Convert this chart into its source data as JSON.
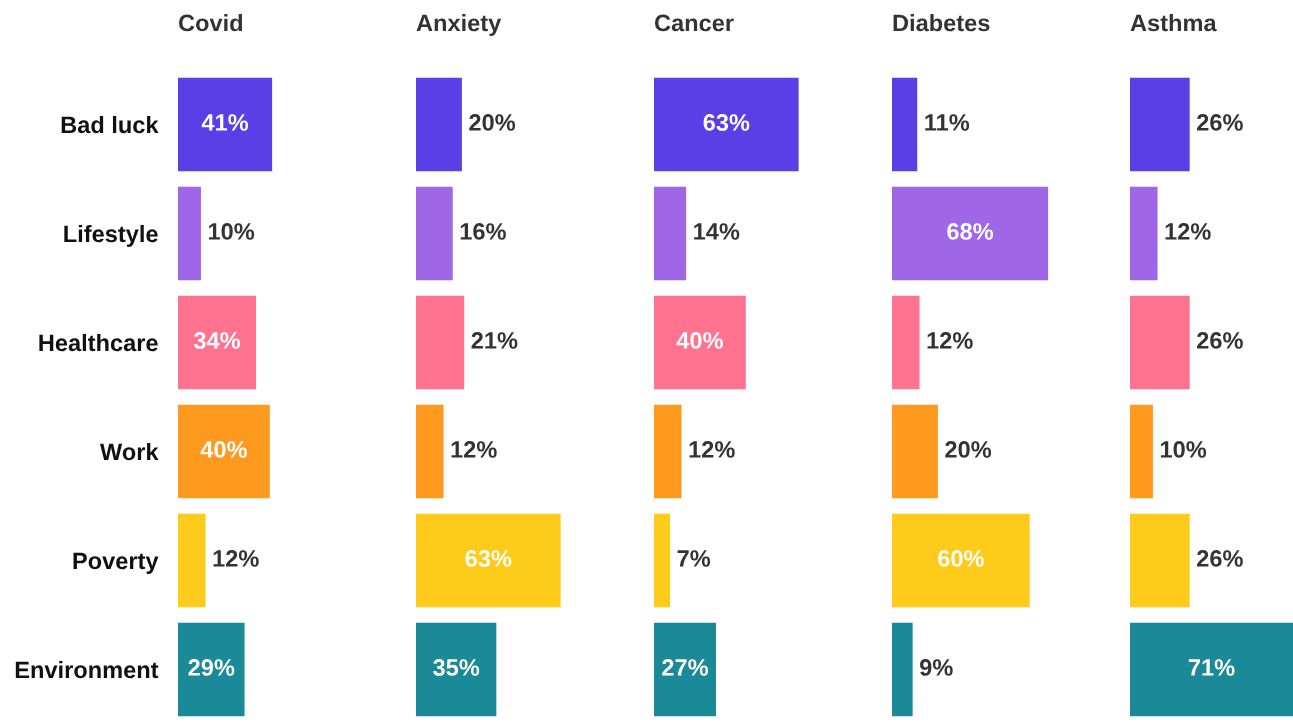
{
  "chart_data": [
    {
      "type": "bar",
      "orientation": "horizontal",
      "title": "Covid",
      "categories": [
        "Bad luck",
        "Lifestyle",
        "Healthcare",
        "Work",
        "Poverty",
        "Environment"
      ],
      "values": [
        41,
        10,
        34,
        40,
        12,
        29
      ],
      "value_labels": [
        "41%",
        "10%",
        "34%",
        "40%",
        "12%",
        "29%"
      ],
      "colors": [
        "#5a3fe6",
        "#a066e8",
        "#ff7390",
        "#ff9a1f",
        "#ffcb1a",
        "#1b8a98"
      ],
      "tick_labels": "y"
    },
    {
      "type": "bar",
      "orientation": "horizontal",
      "title": "Anxiety",
      "categories": [
        null,
        null,
        null,
        null,
        null,
        null
      ],
      "values": [
        20,
        16,
        21,
        12,
        63,
        35
      ],
      "value_labels": [
        "20%",
        "16%",
        "21%",
        "12%",
        "63%",
        "35%"
      ],
      "colors": [
        "#5a3fe6",
        "#a066e8",
        "#ff7390",
        "#ff9a1f",
        "#ffcb1a",
        "#1b8a98"
      ],
      "tick_labels": false
    },
    {
      "type": "bar",
      "orientation": "horizontal",
      "title": "Cancer",
      "categories": [
        null,
        null,
        null,
        null,
        null,
        null
      ],
      "values": [
        63,
        14,
        40,
        12,
        7,
        27
      ],
      "value_labels": [
        "63%",
        "14%",
        "40%",
        "12%",
        "7%",
        "27%"
      ],
      "colors": [
        "#5a3fe6",
        "#a066e8",
        "#ff7390",
        "#ff9a1f",
        "#ffcb1a",
        "#1b8a98"
      ],
      "tick_labels": false
    },
    {
      "type": "bar",
      "orientation": "horizontal",
      "title": "Diabetes",
      "categories": [
        null,
        null,
        null,
        null,
        null,
        null
      ],
      "values": [
        11,
        68,
        12,
        20,
        60,
        9
      ],
      "value_labels": [
        "11%",
        "68%",
        "12%",
        "20%",
        "60%",
        "9%"
      ],
      "colors": [
        "#5a3fe6",
        "#a066e8",
        "#ff7390",
        "#ff9a1f",
        "#ffcb1a",
        "#1b8a98"
      ],
      "tick_labels": false
    },
    {
      "type": "bar",
      "orientation": "horizontal",
      "title": "Asthma",
      "categories": [
        null,
        null,
        null,
        null,
        null,
        null
      ],
      "values": [
        26,
        12,
        26,
        10,
        26,
        71
      ],
      "value_labels": [
        "26%",
        "12%",
        "26%",
        "10%",
        "26%",
        "71%"
      ],
      "colors": [
        "#5a3fe6",
        "#a066e8",
        "#ff7390",
        "#ff9a1f",
        "#ffcb1a",
        "#1b8a98"
      ],
      "tick_labels": false
    }
  ]
}
